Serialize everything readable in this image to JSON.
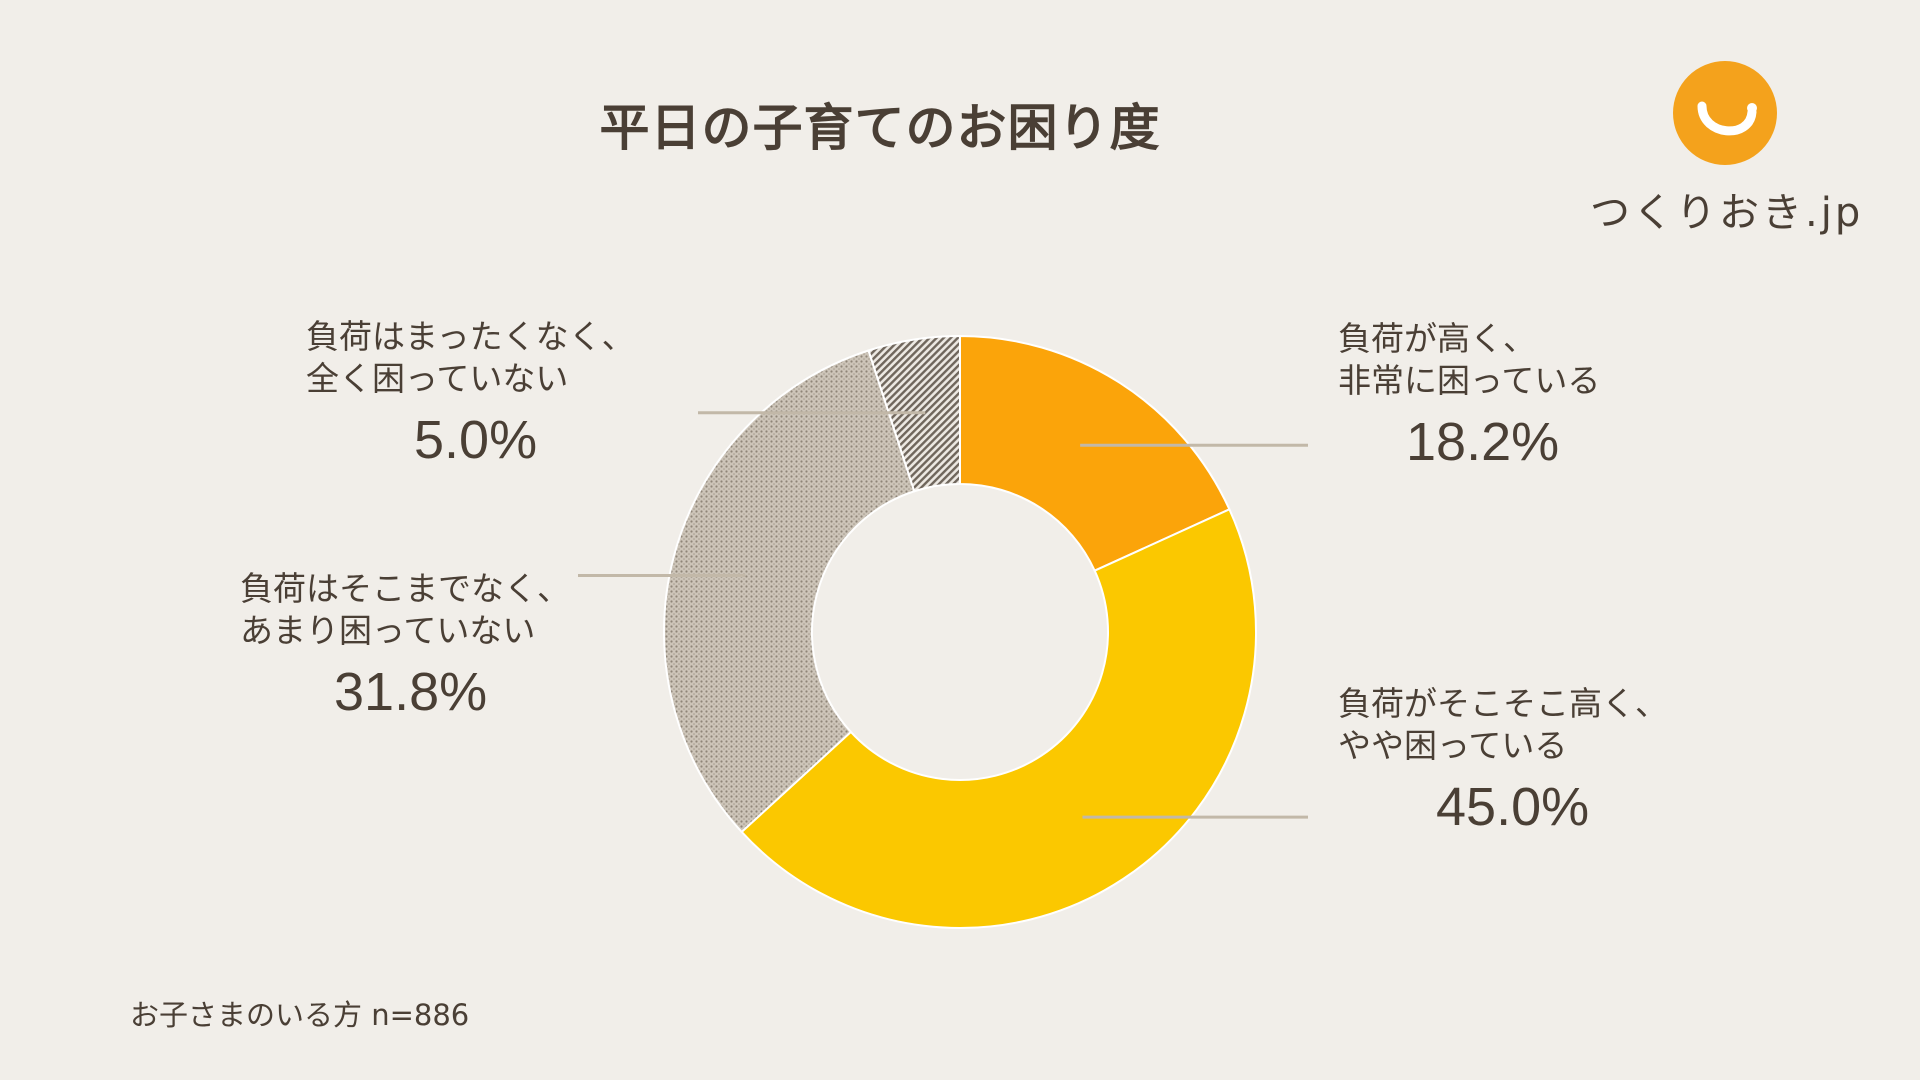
{
  "title": "平日の子育てのお困り度",
  "logo": {
    "text": "つくりおき.jp",
    "brand_color": "#f4a21c"
  },
  "note": "お子さまのいる方 n=886",
  "chart_data": {
    "type": "pie",
    "donut": true,
    "start_angle_deg": 0,
    "direction": "clockwise",
    "slices": [
      {
        "label_line1": "負荷が高く、",
        "label_line2": "非常に困っている",
        "value": 18.2,
        "value_label": "18.2%",
        "color": "#fba40a",
        "pattern": "solid"
      },
      {
        "label_line1": "負荷がそこそこ高く、",
        "label_line2": "やや困っている",
        "value": 45.0,
        "value_label": "45.0%",
        "color": "#fbc800",
        "pattern": "solid"
      },
      {
        "label_line1": "負荷はそこまでなく、",
        "label_line2": "あまり困っていない",
        "value": 31.8,
        "value_label": "31.8%",
        "color": "#b4aa9c",
        "pattern": "dots"
      },
      {
        "label_line1": "負荷はまったくなく、",
        "label_line2": "全く困っていない",
        "value": 5.0,
        "value_label": "5.0%",
        "color": "#6f665c",
        "pattern": "hatch"
      }
    ]
  }
}
